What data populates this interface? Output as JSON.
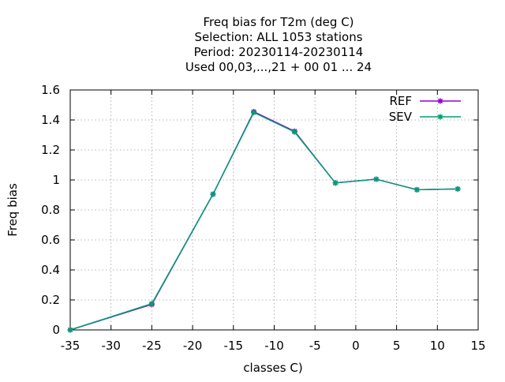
{
  "chart_data": {
    "type": "line",
    "title_lines": [
      "Freq bias  for T2m (deg C)",
      "Selection: ALL   1053 stations",
      "Period: 20230114-20230114",
      "Used  00,03,...,21  + 00 01 ... 24"
    ],
    "xlabel": "classes C)",
    "ylabel": "Freq bias",
    "xlim": [
      -35,
      15
    ],
    "ylim": [
      0,
      1.6
    ],
    "xticks": [
      -35,
      -30,
      -25,
      -20,
      -15,
      -10,
      -5,
      0,
      5,
      10,
      15
    ],
    "yticks": [
      0,
      0.2,
      0.4,
      0.6,
      0.8,
      1,
      1.2,
      1.4,
      1.6
    ],
    "ytick_labels": [
      "0",
      "0.2",
      "0.4",
      "0.6",
      "0.8",
      "1",
      "1.2",
      "1.4",
      "1.6"
    ],
    "grid": true,
    "legend_position": "top-right",
    "series": [
      {
        "name": "REF",
        "color": "#9400d3",
        "x": [
          -35,
          -25,
          -17.5,
          -12.5,
          -7.5,
          -2.5,
          2.5,
          7.5,
          12.5
        ],
        "y": [
          0,
          0.17,
          0.905,
          1.455,
          1.325,
          0.98,
          1.005,
          0.935,
          0.94
        ]
      },
      {
        "name": "SEV",
        "color": "#009e73",
        "x": [
          -35,
          -25,
          -17.5,
          -12.5,
          -7.5,
          -2.5,
          2.5,
          7.5,
          12.5
        ],
        "y": [
          0,
          0.175,
          0.905,
          1.45,
          1.32,
          0.98,
          1.005,
          0.935,
          0.94
        ]
      }
    ]
  }
}
